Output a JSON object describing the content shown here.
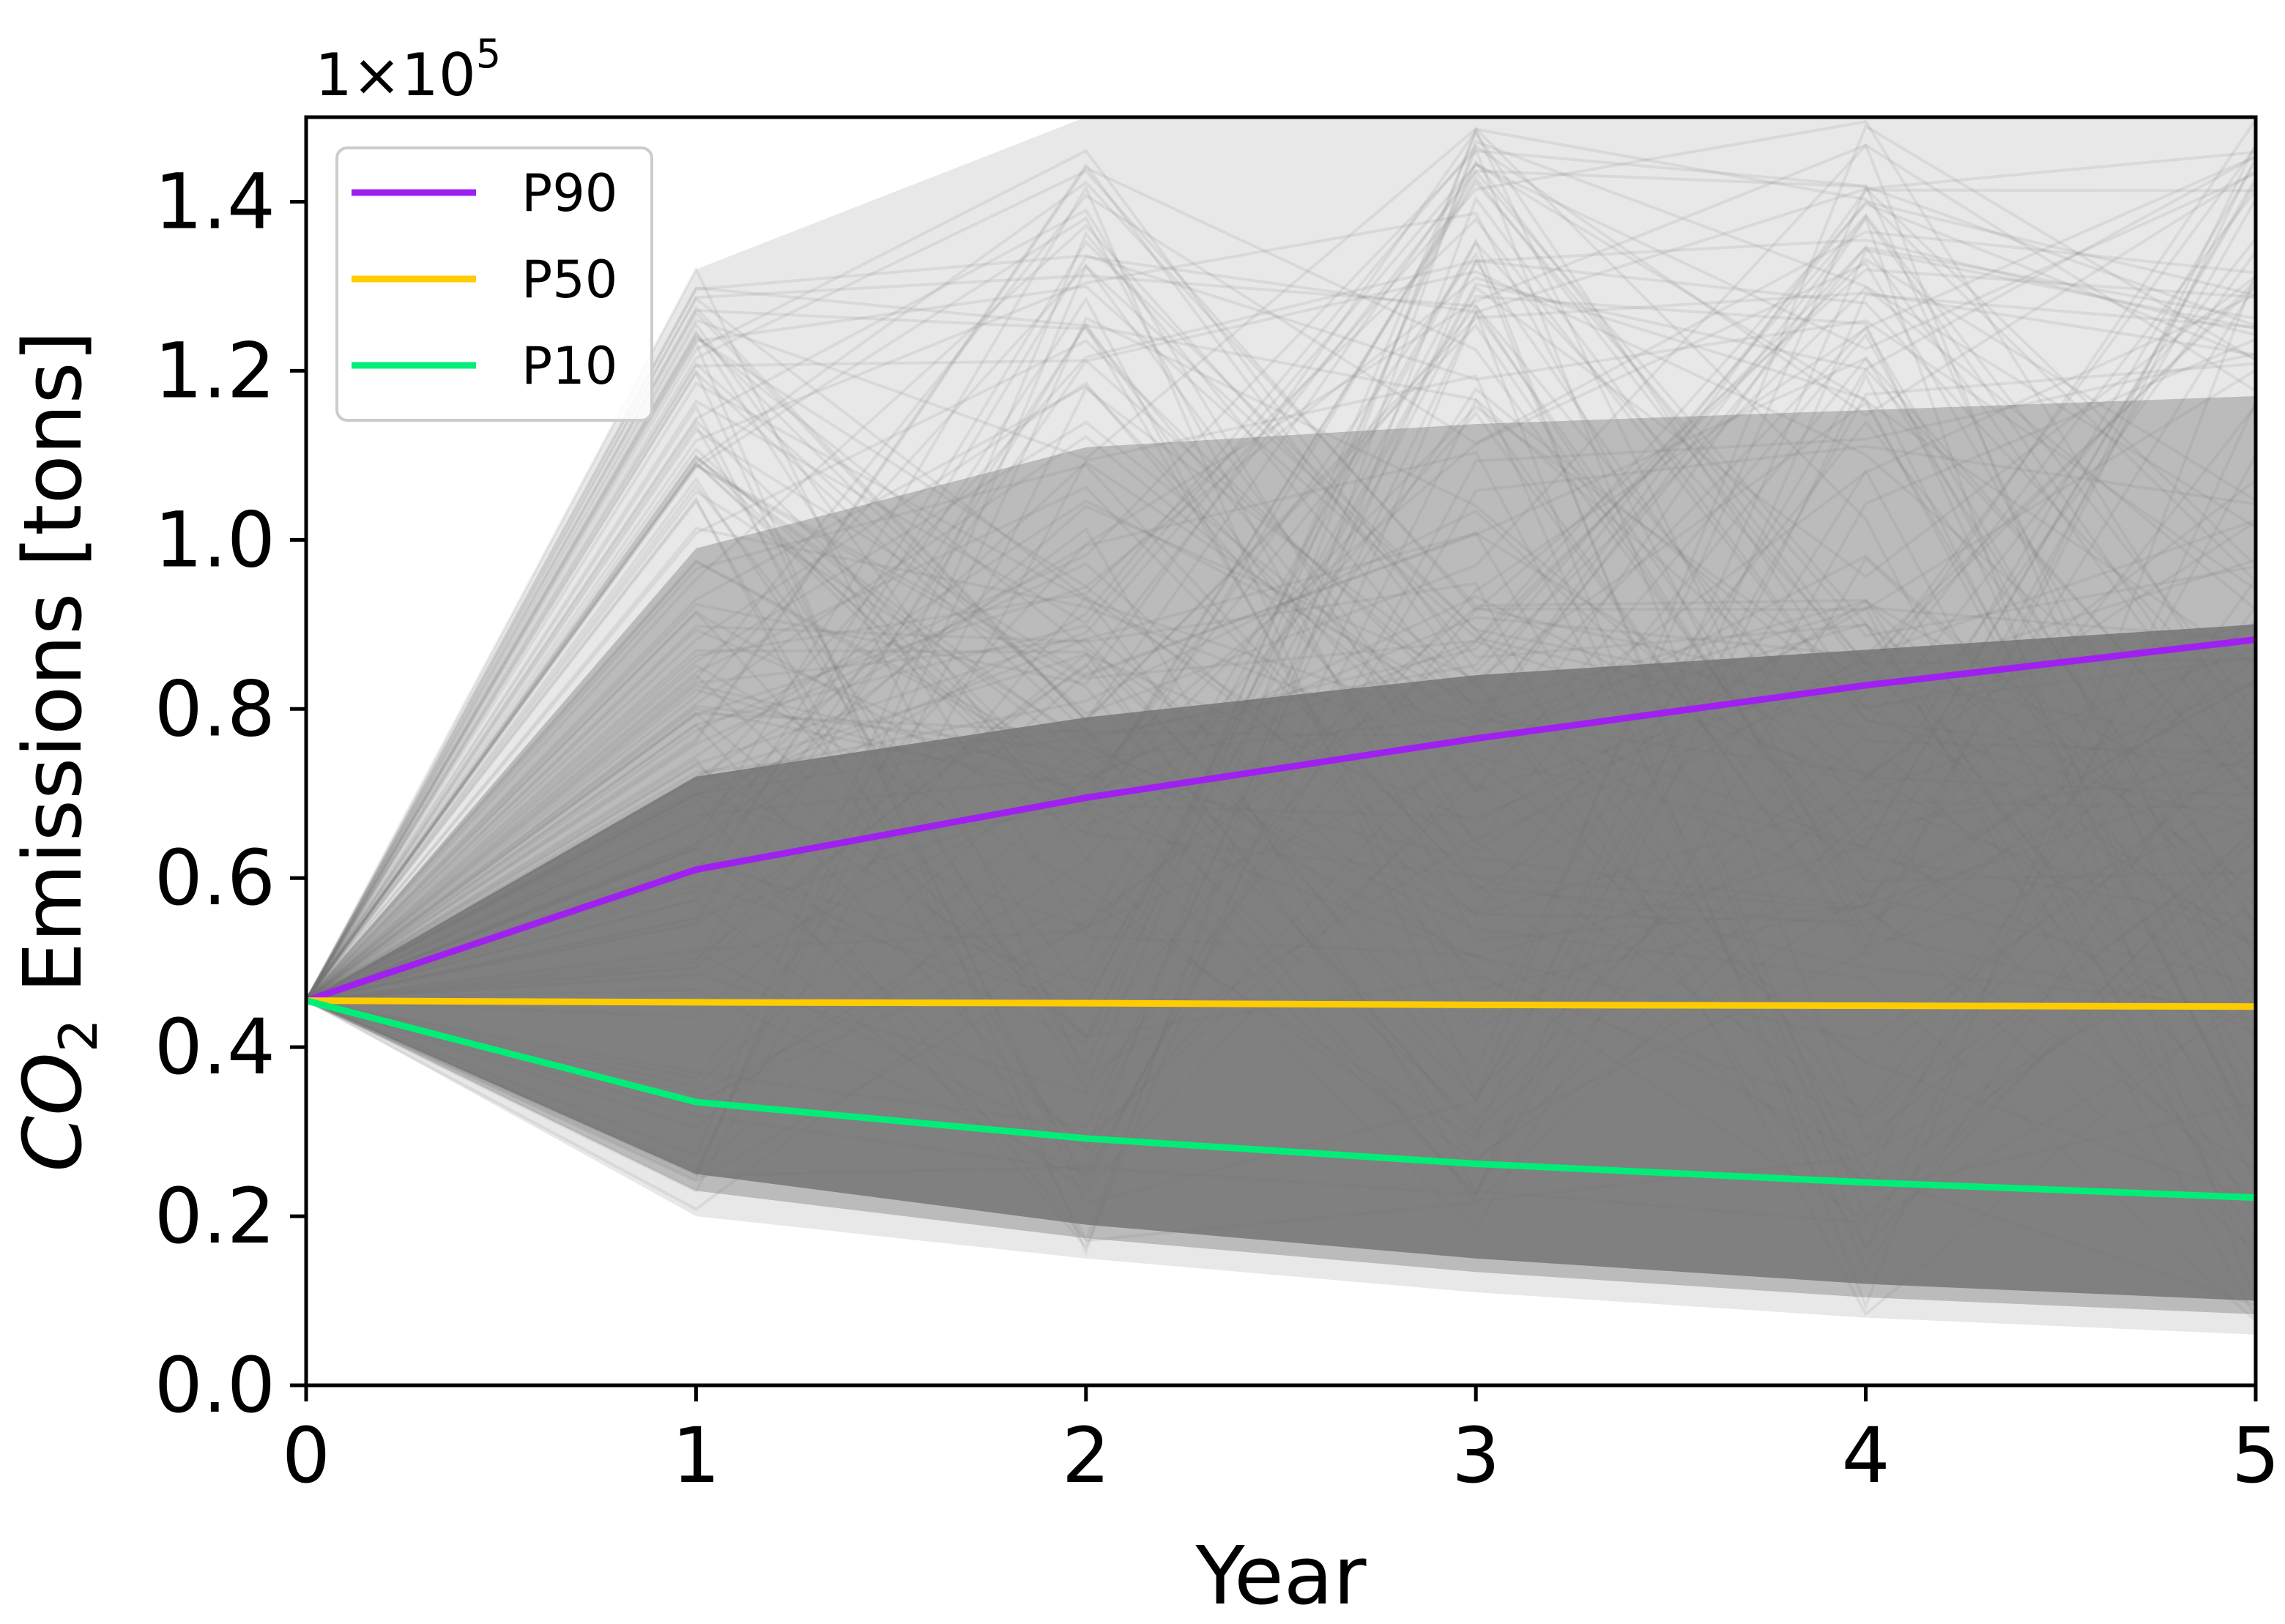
{
  "chart_data": {
    "type": "line",
    "xlabel": "Year",
    "ylabel_italic": "CO",
    "ylabel_sub": "2",
    "ylabel_rest": " Emissions [tons]",
    "offset_base": "1×10",
    "offset_exp": "5",
    "x": [
      0,
      1,
      2,
      3,
      4,
      5
    ],
    "xlim": [
      0,
      5
    ],
    "ylim": [
      0,
      1.5
    ],
    "y_scale": 100000,
    "x_ticks": [
      "0",
      "1",
      "2",
      "3",
      "4",
      "5"
    ],
    "y_ticks": [
      "0.0",
      "0.2",
      "0.4",
      "0.6",
      "0.8",
      "1.0",
      "1.2",
      "1.4"
    ],
    "y_tick_values": [
      0.0,
      0.2,
      0.4,
      0.6,
      0.8,
      1.0,
      1.2,
      1.4
    ],
    "legend_position": "upper-left",
    "series": [
      {
        "name": "P90",
        "color": "#a020f0",
        "values": [
          0.455,
          0.61,
          0.695,
          0.765,
          0.828,
          0.882
        ]
      },
      {
        "name": "P50",
        "color": "#ffcc00",
        "values": [
          0.455,
          0.453,
          0.452,
          0.45,
          0.449,
          0.448
        ]
      },
      {
        "name": "P10",
        "color": "#00ee77",
        "values": [
          0.455,
          0.335,
          0.292,
          0.262,
          0.24,
          0.222
        ]
      }
    ],
    "simulation_envelope": {
      "color": "#808080",
      "dense_upper": [
        0.455,
        0.72,
        0.79,
        0.84,
        0.87,
        0.9
      ],
      "dense_lower": [
        0.455,
        0.25,
        0.19,
        0.15,
        0.12,
        0.1
      ],
      "outer_upper": [
        0.455,
        1.32,
        1.5,
        1.5,
        1.5,
        1.5
      ],
      "outer_lower": [
        0.455,
        0.2,
        0.15,
        0.11,
        0.08,
        0.06
      ]
    }
  }
}
